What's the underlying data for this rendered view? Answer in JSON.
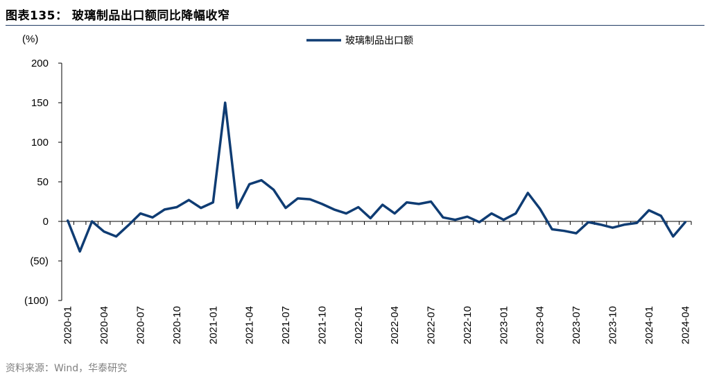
{
  "header": {
    "title": "图表135：  玻璃制品出口额同比降幅收窄"
  },
  "footer": {
    "source": "资料来源：Wind，华泰研究"
  },
  "colors": {
    "series": "#0f3c73",
    "axis": "#000000",
    "rule": "#1f3a63"
  },
  "chart_data": {
    "type": "line",
    "title": "",
    "unit_label": "(%)",
    "xlabel": "",
    "ylabel": "",
    "ylim": [
      -100,
      200
    ],
    "yticks": [
      200,
      150,
      100,
      50,
      0,
      -50,
      -100
    ],
    "ytick_labels": [
      "200",
      "150",
      "100",
      "50",
      "0",
      "(50)",
      "(100)"
    ],
    "grid": false,
    "legend_position": "top-center",
    "x_tick_labels": [
      "2020-01",
      "2020-04",
      "2020-07",
      "2020-10",
      "2021-01",
      "2021-04",
      "2021-07",
      "2021-10",
      "2022-01",
      "2022-04",
      "2022-07",
      "2022-10",
      "2023-01",
      "2023-04",
      "2023-07",
      "2023-10",
      "2024-01",
      "2024-04"
    ],
    "x": [
      "2020-01",
      "2020-02",
      "2020-03",
      "2020-04",
      "2020-05",
      "2020-06",
      "2020-07",
      "2020-08",
      "2020-09",
      "2020-10",
      "2020-11",
      "2020-12",
      "2021-01",
      "2021-02",
      "2021-03",
      "2021-04",
      "2021-05",
      "2021-06",
      "2021-07",
      "2021-08",
      "2021-09",
      "2021-10",
      "2021-11",
      "2021-12",
      "2022-01",
      "2022-02",
      "2022-03",
      "2022-04",
      "2022-05",
      "2022-06",
      "2022-07",
      "2022-08",
      "2022-09",
      "2022-10",
      "2022-11",
      "2022-12",
      "2023-01",
      "2023-02",
      "2023-03",
      "2023-04",
      "2023-05",
      "2023-06",
      "2023-07",
      "2023-08",
      "2023-09",
      "2023-10",
      "2023-11",
      "2023-12",
      "2024-01",
      "2024-02",
      "2024-03",
      "2024-04"
    ],
    "series": [
      {
        "name": "玻璃制品出口额",
        "values": [
          1,
          -38,
          0,
          -13,
          -19,
          -5,
          10,
          5,
          15,
          18,
          27,
          17,
          24,
          150,
          17,
          47,
          52,
          40,
          17,
          29,
          28,
          22,
          15,
          10,
          18,
          4,
          21,
          10,
          24,
          22,
          25,
          5,
          2,
          6,
          -1,
          10,
          2,
          10,
          36,
          16,
          -10,
          -12,
          -15,
          -1,
          -4,
          -8,
          -4,
          -2,
          14,
          7,
          -19,
          -1
        ]
      }
    ]
  }
}
